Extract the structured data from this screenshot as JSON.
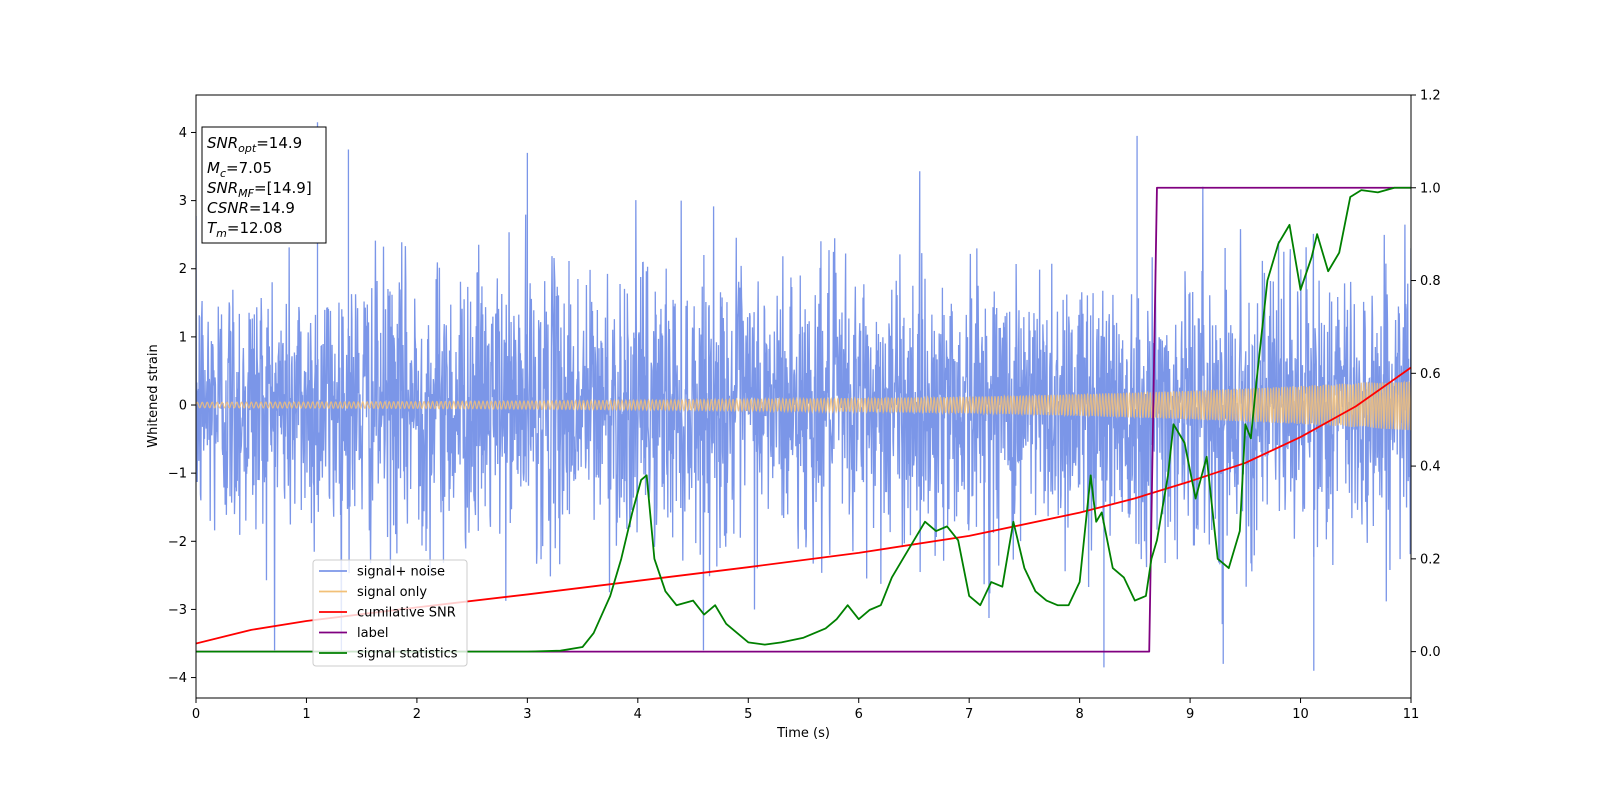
{
  "chart_data": {
    "type": "line",
    "title": "",
    "xlabel": "Time (s)",
    "ylabel": "Whitened strain",
    "xlim": [
      0,
      11
    ],
    "ylim": [
      -4.3,
      4.55
    ],
    "y2lim": [
      -0.1,
      1.2
    ],
    "grid": false,
    "legend_position": "lower-left",
    "x_ticks": [
      0,
      1,
      2,
      3,
      4,
      5,
      6,
      7,
      8,
      9,
      10,
      11
    ],
    "y_ticks": [
      -4,
      -3,
      -2,
      -1,
      0,
      1,
      2,
      3,
      4
    ],
    "y2_ticks": [
      "0.0",
      "0.2",
      "0.4",
      "0.6",
      "0.8",
      "1.0",
      "1.2"
    ],
    "series": [
      {
        "name": "signal+ noise",
        "color": "#7b96e8",
        "axis": "left",
        "note_values": "noise band approx std 1.0, excursions to about +4.1 / -3.9",
        "spikes": [
          {
            "x": 1.1,
            "y": 4.15
          },
          {
            "x": 1.38,
            "y": 3.75
          },
          {
            "x": 3.0,
            "y": 3.7
          },
          {
            "x": 8.52,
            "y": 3.95
          },
          {
            "x": 8.22,
            "y": -3.85
          },
          {
            "x": 10.12,
            "y": -3.9
          },
          {
            "x": 9.3,
            "y": -3.8
          }
        ]
      },
      {
        "name": "signal only",
        "color": "#f2c078",
        "axis": "left",
        "amplitude_envelope": [
          [
            0,
            0.04
          ],
          [
            2,
            0.05
          ],
          [
            4,
            0.07
          ],
          [
            6,
            0.1
          ],
          [
            7,
            0.12
          ],
          [
            8,
            0.16
          ],
          [
            9,
            0.21
          ],
          [
            10,
            0.28
          ],
          [
            11,
            0.37
          ]
        ]
      },
      {
        "name": "cumilative SNR",
        "color": "#ff0000",
        "axis": "left",
        "x": [
          0,
          0.5,
          1,
          2,
          3,
          4,
          5,
          6,
          7,
          8,
          8.5,
          9,
          9.5,
          10,
          10.5,
          11
        ],
        "y": [
          -3.5,
          -3.3,
          -3.17,
          -2.97,
          -2.78,
          -2.58,
          -2.38,
          -2.17,
          -1.92,
          -1.58,
          -1.37,
          -1.12,
          -0.85,
          -0.47,
          -0.02,
          0.55
        ]
      },
      {
        "name": "label",
        "color": "#800080",
        "axis": "right",
        "x": [
          0,
          8.63,
          8.7,
          11
        ],
        "y": [
          0.0,
          0.0,
          1.0,
          1.0
        ]
      },
      {
        "name": "signal statistics",
        "color": "#008000",
        "axis": "right",
        "x": [
          0,
          3.0,
          3.3,
          3.5,
          3.6,
          3.75,
          3.85,
          3.95,
          4.03,
          4.08,
          4.15,
          4.25,
          4.35,
          4.5,
          4.6,
          4.7,
          4.8,
          5.0,
          5.15,
          5.3,
          5.5,
          5.7,
          5.8,
          5.9,
          6.0,
          6.1,
          6.2,
          6.3,
          6.4,
          6.5,
          6.6,
          6.7,
          6.8,
          6.9,
          7.0,
          7.1,
          7.2,
          7.3,
          7.4,
          7.5,
          7.6,
          7.7,
          7.8,
          7.9,
          8.0,
          8.1,
          8.15,
          8.2,
          8.3,
          8.4,
          8.5,
          8.6,
          8.65,
          8.7,
          8.8,
          8.85,
          8.95,
          9.05,
          9.15,
          9.25,
          9.35,
          9.45,
          9.5,
          9.55,
          9.6,
          9.7,
          9.8,
          9.9,
          10.0,
          10.1,
          10.15,
          10.25,
          10.35,
          10.45,
          10.55,
          10.7,
          10.85,
          11
        ],
        "y": [
          0.0,
          0.0,
          0.002,
          0.01,
          0.04,
          0.12,
          0.2,
          0.3,
          0.37,
          0.38,
          0.2,
          0.13,
          0.1,
          0.11,
          0.08,
          0.1,
          0.06,
          0.02,
          0.015,
          0.02,
          0.03,
          0.05,
          0.07,
          0.1,
          0.07,
          0.09,
          0.1,
          0.16,
          0.2,
          0.24,
          0.28,
          0.26,
          0.27,
          0.24,
          0.12,
          0.1,
          0.15,
          0.14,
          0.28,
          0.18,
          0.13,
          0.11,
          0.1,
          0.1,
          0.15,
          0.38,
          0.28,
          0.3,
          0.18,
          0.16,
          0.11,
          0.12,
          0.2,
          0.24,
          0.38,
          0.49,
          0.45,
          0.33,
          0.42,
          0.2,
          0.18,
          0.26,
          0.49,
          0.46,
          0.58,
          0.8,
          0.88,
          0.92,
          0.78,
          0.85,
          0.9,
          0.82,
          0.86,
          0.98,
          0.995,
          0.99,
          1.0,
          1.0
        ]
      }
    ],
    "annotation_box": [
      {
        "sym": "SNR",
        "sub": "opt",
        "rest": "=14.9"
      },
      {
        "sym": "M",
        "sub": "c",
        "rest": "=7.05"
      },
      {
        "sym": "SNR",
        "sub": "MF",
        "rest": "=[14.9]"
      },
      {
        "sym": "CSNR",
        "sub": "",
        "rest": "=14.9"
      },
      {
        "sym": "T",
        "sub": "m",
        "rest": "=12.08"
      }
    ]
  }
}
